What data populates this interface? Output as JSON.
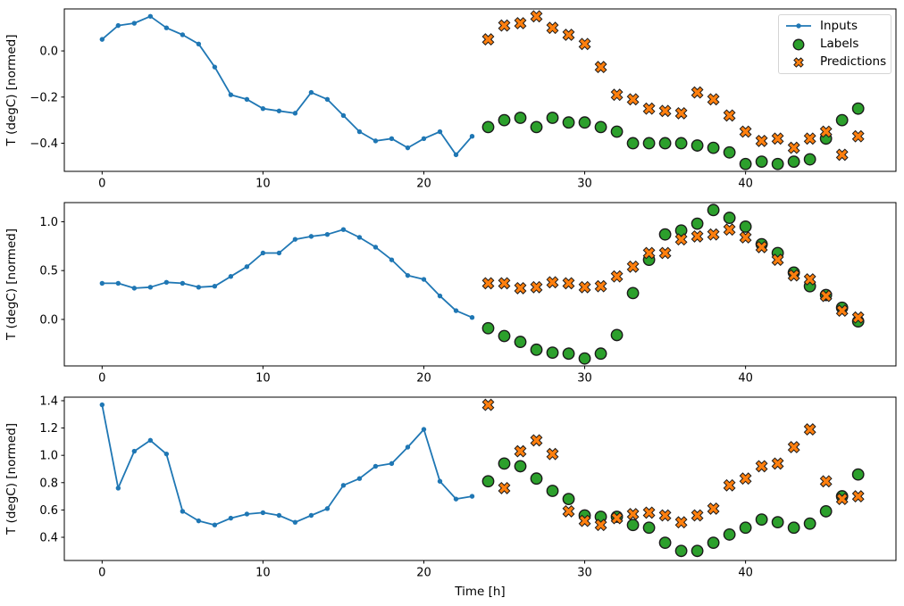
{
  "figure": {
    "xlabel": "Time [h]",
    "ylabel": "T (degC) [normed]",
    "legend": {
      "position": "upper-right",
      "items": [
        {
          "key": "inputs",
          "label": "Inputs"
        },
        {
          "key": "labels",
          "label": "Labels"
        },
        {
          "key": "predictions",
          "label": "Predictions"
        }
      ]
    },
    "colors": {
      "inputs": "#1f77b4",
      "labels": "#2ca02c",
      "predictions": "#ff7f0e",
      "marker_edge": "#1a1a1a",
      "axes_edge": "#000000",
      "legend_border": "#d5d5d5",
      "background": "#ffffff"
    }
  },
  "chart_data": [
    {
      "type": "line",
      "title": "",
      "xlabel": "",
      "ylabel": "T (degC) [normed]",
      "grid": false,
      "xlim": [
        -2.35,
        49.35
      ],
      "ylim": [
        -0.522,
        0.182
      ],
      "xticks": [
        {
          "v": 0,
          "label": "0"
        },
        {
          "v": 10,
          "label": "10"
        },
        {
          "v": 20,
          "label": "20"
        },
        {
          "v": 30,
          "label": "30"
        },
        {
          "v": 40,
          "label": "40"
        }
      ],
      "yticks": [
        {
          "v": 0.0,
          "label": "0.0"
        },
        {
          "v": -0.2,
          "label": "−0.2"
        },
        {
          "v": -0.4,
          "label": "−0.4"
        }
      ],
      "series": [
        {
          "key": "inputs",
          "name": "Inputs",
          "marker": "line-dot",
          "x": [
            0,
            1,
            2,
            3,
            4,
            5,
            6,
            7,
            8,
            9,
            10,
            11,
            12,
            13,
            14,
            15,
            16,
            17,
            18,
            19,
            20,
            21,
            22,
            23
          ],
          "values": [
            0.05,
            0.11,
            0.12,
            0.15,
            0.1,
            0.07,
            0.03,
            -0.07,
            -0.19,
            -0.21,
            -0.25,
            -0.26,
            -0.27,
            -0.18,
            -0.21,
            -0.28,
            -0.35,
            -0.39,
            -0.38,
            -0.42,
            -0.38,
            -0.35,
            -0.45,
            -0.37
          ]
        },
        {
          "key": "labels",
          "name": "Labels",
          "marker": "circle",
          "x": [
            24,
            25,
            26,
            27,
            28,
            29,
            30,
            31,
            32,
            33,
            34,
            35,
            36,
            37,
            38,
            39,
            40,
            41,
            42,
            43,
            44,
            45,
            46,
            47
          ],
          "values": [
            -0.33,
            -0.3,
            -0.29,
            -0.33,
            -0.29,
            -0.31,
            -0.31,
            -0.33,
            -0.35,
            -0.4,
            -0.4,
            -0.4,
            -0.4,
            -0.41,
            -0.42,
            -0.44,
            -0.49,
            -0.48,
            -0.49,
            -0.48,
            -0.47,
            -0.38,
            -0.3,
            -0.25
          ]
        },
        {
          "key": "predictions",
          "name": "Predictions",
          "marker": "x",
          "x": [
            24,
            25,
            26,
            27,
            28,
            29,
            30,
            31,
            32,
            33,
            34,
            35,
            36,
            37,
            38,
            39,
            40,
            41,
            42,
            43,
            44,
            45,
            46,
            47
          ],
          "values": [
            0.05,
            0.11,
            0.12,
            0.15,
            0.1,
            0.07,
            0.03,
            -0.07,
            -0.19,
            -0.21,
            -0.25,
            -0.26,
            -0.27,
            -0.18,
            -0.21,
            -0.28,
            -0.35,
            -0.39,
            -0.38,
            -0.42,
            -0.38,
            -0.35,
            -0.45,
            -0.37
          ]
        }
      ]
    },
    {
      "type": "line",
      "title": "",
      "xlabel": "",
      "ylabel": "T (degC) [normed]",
      "grid": false,
      "xlim": [
        -2.35,
        49.35
      ],
      "ylim": [
        -0.476,
        1.196
      ],
      "xticks": [
        {
          "v": 0,
          "label": "0"
        },
        {
          "v": 10,
          "label": "10"
        },
        {
          "v": 20,
          "label": "20"
        },
        {
          "v": 30,
          "label": "30"
        },
        {
          "v": 40,
          "label": "40"
        }
      ],
      "yticks": [
        {
          "v": 1.0,
          "label": "1.0"
        },
        {
          "v": 0.5,
          "label": "0.5"
        },
        {
          "v": 0.0,
          "label": "0.0"
        }
      ],
      "series": [
        {
          "key": "inputs",
          "name": "Inputs",
          "marker": "line-dot",
          "x": [
            0,
            1,
            2,
            3,
            4,
            5,
            6,
            7,
            8,
            9,
            10,
            11,
            12,
            13,
            14,
            15,
            16,
            17,
            18,
            19,
            20,
            21,
            22,
            23
          ],
          "values": [
            0.37,
            0.37,
            0.32,
            0.33,
            0.38,
            0.37,
            0.33,
            0.34,
            0.44,
            0.54,
            0.68,
            0.68,
            0.82,
            0.85,
            0.87,
            0.92,
            0.84,
            0.74,
            0.61,
            0.45,
            0.41,
            0.24,
            0.09,
            0.02
          ]
        },
        {
          "key": "labels",
          "name": "Labels",
          "marker": "circle",
          "x": [
            24,
            25,
            26,
            27,
            28,
            29,
            30,
            31,
            32,
            33,
            34,
            35,
            36,
            37,
            38,
            39,
            40,
            41,
            42,
            43,
            44,
            45,
            46,
            47
          ],
          "values": [
            -0.09,
            -0.17,
            -0.23,
            -0.31,
            -0.34,
            -0.35,
            -0.4,
            -0.35,
            -0.16,
            0.27,
            0.61,
            0.87,
            0.91,
            0.98,
            1.12,
            1.04,
            0.95,
            0.77,
            0.68,
            0.48,
            0.34,
            0.25,
            0.12,
            -0.02
          ]
        },
        {
          "key": "predictions",
          "name": "Predictions",
          "marker": "x",
          "x": [
            24,
            25,
            26,
            27,
            28,
            29,
            30,
            31,
            32,
            33,
            34,
            35,
            36,
            37,
            38,
            39,
            40,
            41,
            42,
            43,
            44,
            45,
            46,
            47
          ],
          "values": [
            0.37,
            0.37,
            0.32,
            0.33,
            0.38,
            0.37,
            0.33,
            0.34,
            0.44,
            0.54,
            0.68,
            0.68,
            0.82,
            0.85,
            0.87,
            0.92,
            0.84,
            0.74,
            0.61,
            0.45,
            0.41,
            0.24,
            0.09,
            0.02
          ]
        }
      ]
    },
    {
      "type": "line",
      "title": "",
      "xlabel": "Time [h]",
      "ylabel": "T (degC) [normed]",
      "grid": false,
      "xlim": [
        -2.35,
        49.35
      ],
      "ylim": [
        0.23,
        1.426
      ],
      "xticks": [
        {
          "v": 0,
          "label": "0"
        },
        {
          "v": 10,
          "label": "10"
        },
        {
          "v": 20,
          "label": "20"
        },
        {
          "v": 30,
          "label": "30"
        },
        {
          "v": 40,
          "label": "40"
        }
      ],
      "yticks": [
        {
          "v": 1.4,
          "label": "1.4"
        },
        {
          "v": 1.2,
          "label": "1.2"
        },
        {
          "v": 1.0,
          "label": "1.0"
        },
        {
          "v": 0.8,
          "label": "0.8"
        },
        {
          "v": 0.6,
          "label": "0.6"
        },
        {
          "v": 0.4,
          "label": "0.4"
        }
      ],
      "series": [
        {
          "key": "inputs",
          "name": "Inputs",
          "marker": "line-dot",
          "x": [
            0,
            1,
            2,
            3,
            4,
            5,
            6,
            7,
            8,
            9,
            10,
            11,
            12,
            13,
            14,
            15,
            16,
            17,
            18,
            19,
            20,
            21,
            22,
            23
          ],
          "values": [
            1.37,
            0.76,
            1.03,
            1.11,
            1.01,
            0.59,
            0.52,
            0.49,
            0.54,
            0.57,
            0.58,
            0.56,
            0.51,
            0.56,
            0.61,
            0.78,
            0.83,
            0.92,
            0.94,
            1.06,
            1.19,
            0.81,
            0.68,
            0.7
          ]
        },
        {
          "key": "labels",
          "name": "Labels",
          "marker": "circle",
          "x": [
            24,
            25,
            26,
            27,
            28,
            29,
            30,
            31,
            32,
            33,
            34,
            35,
            36,
            37,
            38,
            39,
            40,
            41,
            42,
            43,
            44,
            45,
            46,
            47
          ],
          "values": [
            0.81,
            0.94,
            0.92,
            0.83,
            0.74,
            0.68,
            0.56,
            0.55,
            0.55,
            0.49,
            0.47,
            0.36,
            0.3,
            0.3,
            0.36,
            0.42,
            0.47,
            0.53,
            0.51,
            0.47,
            0.5,
            0.59,
            0.7,
            0.86
          ]
        },
        {
          "key": "predictions",
          "name": "Predictions",
          "marker": "x",
          "x": [
            24,
            25,
            26,
            27,
            28,
            29,
            30,
            31,
            32,
            33,
            34,
            35,
            36,
            37,
            38,
            39,
            40,
            41,
            42,
            43,
            44,
            45,
            46,
            47
          ],
          "values": [
            1.37,
            0.76,
            1.03,
            1.11,
            1.01,
            0.59,
            0.52,
            0.49,
            0.54,
            0.57,
            0.58,
            0.56,
            0.51,
            0.56,
            0.61,
            0.78,
            0.83,
            0.92,
            0.94,
            1.06,
            1.19,
            0.81,
            0.68,
            0.7
          ]
        }
      ]
    }
  ]
}
